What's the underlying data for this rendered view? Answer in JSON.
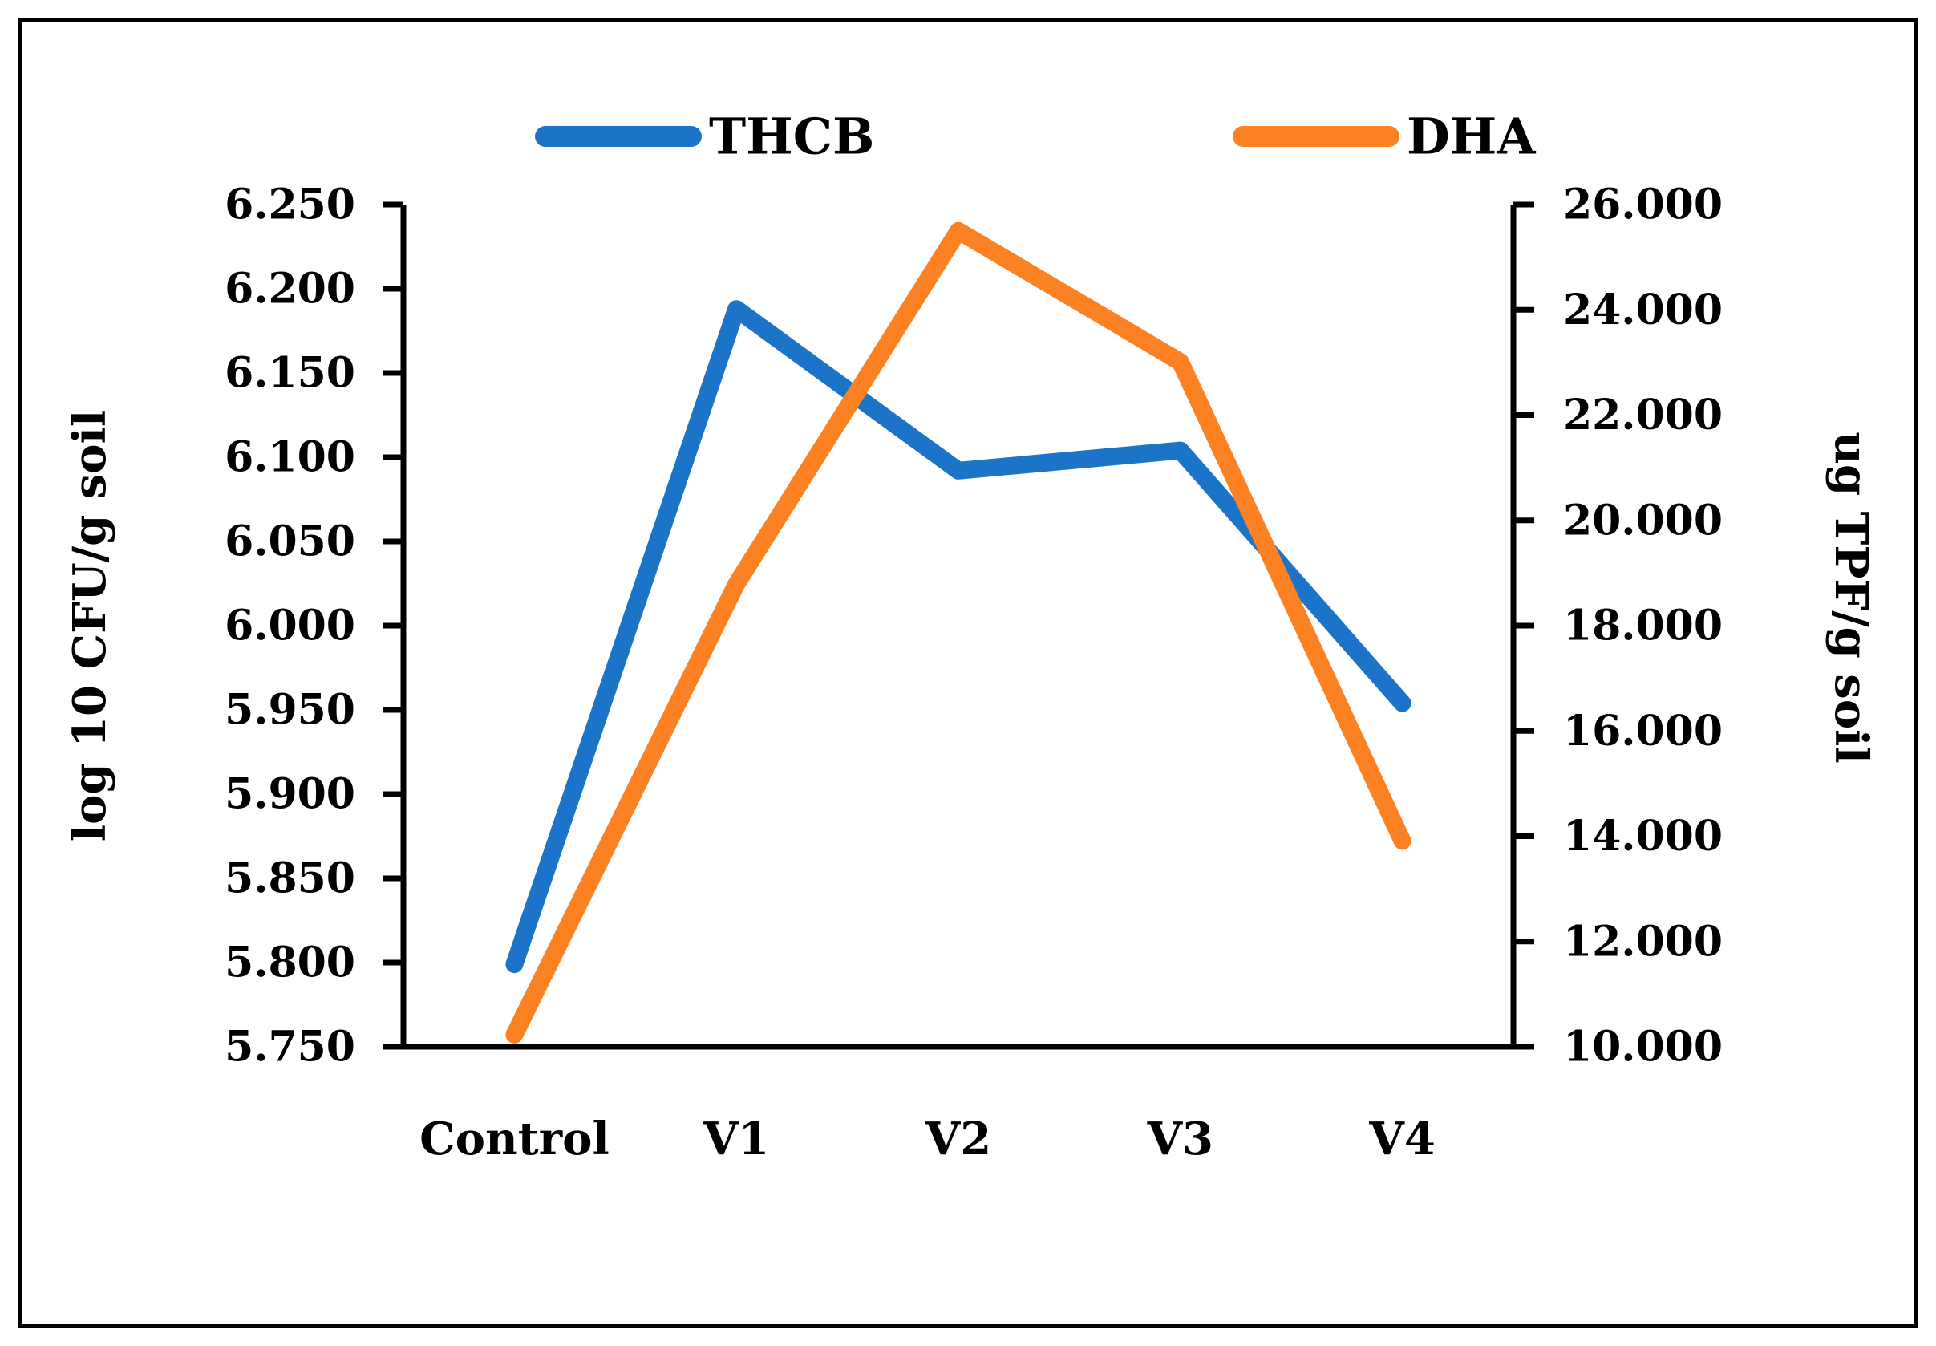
{
  "chart_data": {
    "type": "line",
    "title": "",
    "categories": [
      "Control",
      "V1",
      "V2",
      "V3",
      "V4"
    ],
    "series": [
      {
        "name": "THCB",
        "axis": "left",
        "color": "#1B74C7",
        "values": [
          5.799,
          6.188,
          6.092,
          6.104,
          5.954
        ]
      },
      {
        "name": "DHA",
        "axis": "right",
        "color": "#FB8122",
        "values": [
          10.23,
          18.79,
          25.5,
          23.01,
          13.91
        ]
      }
    ],
    "left_axis": {
      "label": "log 10 CFU/g soil",
      "min": 5.75,
      "max": 6.25,
      "ticks": [
        {
          "v": 5.75,
          "label": "5.750"
        },
        {
          "v": 5.8,
          "label": "5.800"
        },
        {
          "v": 5.85,
          "label": "5.850"
        },
        {
          "v": 5.9,
          "label": "5.900"
        },
        {
          "v": 5.95,
          "label": "5.950"
        },
        {
          "v": 6.0,
          "label": "6.000"
        },
        {
          "v": 6.05,
          "label": "6.050"
        },
        {
          "v": 6.1,
          "label": "6.100"
        },
        {
          "v": 6.15,
          "label": "6.150"
        },
        {
          "v": 6.2,
          "label": "6.200"
        },
        {
          "v": 6.25,
          "label": "6.250"
        }
      ]
    },
    "right_axis": {
      "label": "ug TPF/g soil",
      "min": 10.0,
      "max": 26.0,
      "ticks": [
        {
          "v": 10.0,
          "label": "10.000"
        },
        {
          "v": 12.0,
          "label": "12.000"
        },
        {
          "v": 14.0,
          "label": "14.000"
        },
        {
          "v": 16.0,
          "label": "16.000"
        },
        {
          "v": 18.0,
          "label": "18.000"
        },
        {
          "v": 20.0,
          "label": "20.000"
        },
        {
          "v": 22.0,
          "label": "22.000"
        },
        {
          "v": 24.0,
          "label": "24.000"
        },
        {
          "v": 26.0,
          "label": "26.000"
        }
      ]
    },
    "legend_position": "top",
    "grid": false
  },
  "legend": {
    "items": [
      {
        "label": "THCB",
        "color": "#1B74C7"
      },
      {
        "label": "DHA",
        "color": "#FB8122"
      }
    ]
  },
  "colors": {
    "series_thcb": "#1B74C7",
    "series_dha": "#FB8122",
    "axis": "#000000",
    "text": "#000000",
    "background": "#FFFFFF",
    "figure_border": "#000000"
  }
}
